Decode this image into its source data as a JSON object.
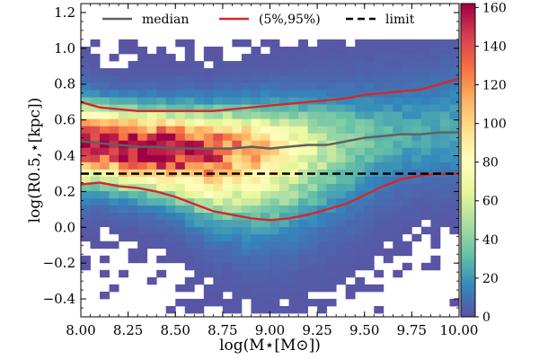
{
  "chart_data": {
    "type": "heatmap",
    "title": "",
    "xlabel": "log(M⋆[M⊙])",
    "ylabel": "log(R0.5,⋆[kpc])",
    "xlim": [
      8.0,
      10.0
    ],
    "ylim": [
      -0.5,
      1.25
    ],
    "xticks": [
      8.0,
      8.25,
      8.5,
      8.75,
      9.0,
      9.25,
      9.5,
      9.75,
      10.0
    ],
    "xtick_labels": [
      "8.00",
      "8.25",
      "8.50",
      "8.75",
      "9.00",
      "9.25",
      "9.50",
      "9.75",
      "10.00"
    ],
    "yticks": [
      -0.4,
      -0.2,
      0.0,
      0.2,
      0.4,
      0.6,
      0.8,
      1.0,
      1.2
    ],
    "ytick_labels": [
      "−0.4",
      "−0.2",
      "0.0",
      "0.2",
      "0.4",
      "0.6",
      "0.8",
      "1.0",
      "1.2"
    ],
    "colorbar": {
      "min": 0,
      "max": 162,
      "colormap": "Spectral_r",
      "ticks": [
        0,
        20,
        40,
        60,
        80,
        100,
        120,
        140,
        160
      ],
      "tick_labels": [
        "0",
        "20",
        "40",
        "60",
        "80",
        "100",
        "120",
        "140",
        "160"
      ]
    },
    "grid": false,
    "legend_position": "top",
    "series": [
      {
        "name": "median",
        "color": "#606060",
        "style": "solid",
        "x": [
          8.0,
          8.1,
          8.2,
          8.3,
          8.4,
          8.5,
          8.6,
          8.7,
          8.8,
          8.9,
          9.0,
          9.1,
          9.2,
          9.3,
          9.4,
          9.5,
          9.6,
          9.7,
          9.8,
          9.9,
          10.0
        ],
        "y": [
          0.48,
          0.47,
          0.46,
          0.45,
          0.45,
          0.44,
          0.44,
          0.44,
          0.44,
          0.45,
          0.44,
          0.45,
          0.46,
          0.46,
          0.48,
          0.5,
          0.51,
          0.52,
          0.52,
          0.53,
          0.53
        ]
      },
      {
        "name": "(5%,95%)",
        "color": "#d62728",
        "style": "solid",
        "x": [
          8.0,
          8.1,
          8.2,
          8.3,
          8.4,
          8.5,
          8.6,
          8.7,
          8.8,
          8.9,
          9.0,
          9.1,
          9.2,
          9.3,
          9.4,
          9.5,
          9.6,
          9.7,
          9.8,
          9.9,
          10.0
        ],
        "y": [
          0.7,
          0.67,
          0.66,
          0.65,
          0.65,
          0.65,
          0.65,
          0.65,
          0.66,
          0.67,
          0.68,
          0.69,
          0.7,
          0.71,
          0.72,
          0.74,
          0.75,
          0.76,
          0.77,
          0.8,
          0.83
        ]
      },
      {
        "name": "",
        "color": "#d62728",
        "style": "solid",
        "x": [
          8.0,
          8.1,
          8.2,
          8.3,
          8.4,
          8.5,
          8.6,
          8.7,
          8.8,
          8.9,
          9.0,
          9.1,
          9.2,
          9.3,
          9.4,
          9.5,
          9.6,
          9.7,
          9.8,
          9.9,
          10.0
        ],
        "y": [
          0.24,
          0.25,
          0.23,
          0.22,
          0.2,
          0.17,
          0.13,
          0.09,
          0.07,
          0.05,
          0.04,
          0.05,
          0.07,
          0.1,
          0.13,
          0.18,
          0.23,
          0.27,
          0.29,
          0.3,
          0.3
        ]
      },
      {
        "name": "limit",
        "color": "#000000",
        "style": "dashed",
        "x": [
          8.0,
          10.0
        ],
        "y": [
          0.3,
          0.3
        ]
      }
    ],
    "heatmap": {
      "x_bins": 40,
      "y_bins": 38,
      "density_peak": {
        "x": 8.3,
        "y": 0.46,
        "count": 160
      }
    }
  }
}
